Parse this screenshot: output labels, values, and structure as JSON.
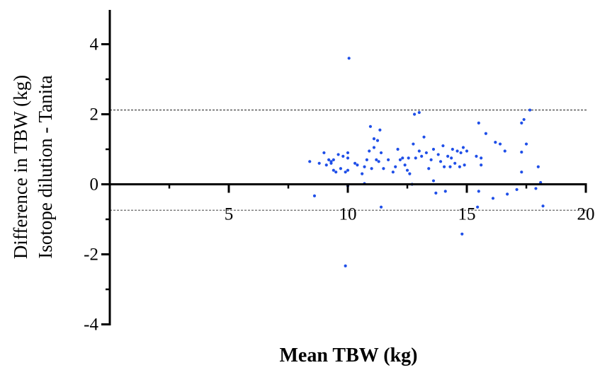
{
  "chart_data": {
    "type": "scatter",
    "xlabel": "Mean TBW (kg)",
    "ylabel_lines": [
      "Difference in TBW (kg)",
      "Isotope dilution - Tanita"
    ],
    "xlim": [
      0,
      20
    ],
    "ylim": [
      -4,
      4.5
    ],
    "x_ticks": [
      5,
      10,
      15,
      20
    ],
    "x_tick_labels": [
      "5",
      "10",
      "15",
      "20"
    ],
    "y_ticks": [
      -4,
      -2,
      0,
      2,
      4
    ],
    "y_tick_labels": [
      "-4",
      "-2",
      "0",
      "2",
      "4"
    ],
    "reference_lines": [
      2.12,
      -0.74
    ],
    "grid": false,
    "point_color": "#1f4fe8",
    "points": [
      [
        8.4,
        0.65
      ],
      [
        8.6,
        -0.33
      ],
      [
        8.8,
        0.6
      ],
      [
        9.0,
        0.9
      ],
      [
        9.1,
        0.55
      ],
      [
        9.2,
        0.7
      ],
      [
        9.3,
        0.65
      ],
      [
        9.3,
        0.6
      ],
      [
        9.4,
        0.7
      ],
      [
        9.4,
        0.4
      ],
      [
        9.5,
        0.35
      ],
      [
        9.6,
        0.85
      ],
      [
        9.7,
        0.45
      ],
      [
        9.8,
        0.8
      ],
      [
        9.9,
        0.35
      ],
      [
        9.9,
        -2.33
      ],
      [
        10.0,
        0.9
      ],
      [
        10.0,
        0.75
      ],
      [
        10.0,
        0.4
      ],
      [
        10.05,
        3.6
      ],
      [
        10.0,
        -0.05
      ],
      [
        10.3,
        0.6
      ],
      [
        10.4,
        0.55
      ],
      [
        10.6,
        0.3
      ],
      [
        10.7,
        0.5
      ],
      [
        10.7,
        0.02
      ],
      [
        10.8,
        0.7
      ],
      [
        10.9,
        0.95
      ],
      [
        10.95,
        1.65
      ],
      [
        11.0,
        0.45
      ],
      [
        11.1,
        1.3
      ],
      [
        11.1,
        1.05
      ],
      [
        11.2,
        0.7
      ],
      [
        11.25,
        1.25
      ],
      [
        11.3,
        0.65
      ],
      [
        11.35,
        1.55
      ],
      [
        11.4,
        0.9
      ],
      [
        11.4,
        -0.65
      ],
      [
        11.5,
        0.45
      ],
      [
        11.7,
        0.7
      ],
      [
        11.9,
        0.35
      ],
      [
        12.0,
        0.5
      ],
      [
        12.1,
        1.0
      ],
      [
        12.2,
        0.7
      ],
      [
        12.3,
        0.75
      ],
      [
        12.4,
        0.55
      ],
      [
        12.5,
        0.4
      ],
      [
        12.55,
        0.75
      ],
      [
        12.6,
        0.3
      ],
      [
        12.7,
        0.0
      ],
      [
        12.75,
        1.15
      ],
      [
        12.8,
        2.0
      ],
      [
        12.85,
        0.75
      ],
      [
        13.0,
        2.05
      ],
      [
        13.0,
        0.95
      ],
      [
        13.1,
        0.8
      ],
      [
        13.2,
        1.35
      ],
      [
        13.3,
        0.9
      ],
      [
        13.4,
        0.45
      ],
      [
        13.5,
        0.7
      ],
      [
        13.6,
        1.0
      ],
      [
        13.6,
        0.1
      ],
      [
        13.7,
        -0.25
      ],
      [
        13.8,
        0.85
      ],
      [
        13.9,
        0.65
      ],
      [
        14.0,
        1.1
      ],
      [
        14.05,
        0.5
      ],
      [
        14.1,
        -0.2
      ],
      [
        14.2,
        0.8
      ],
      [
        14.3,
        0.5
      ],
      [
        14.35,
        0.75
      ],
      [
        14.4,
        1.0
      ],
      [
        14.5,
        0.6
      ],
      [
        14.6,
        0.95
      ],
      [
        14.7,
        0.5
      ],
      [
        14.75,
        0.9
      ],
      [
        14.8,
        -1.42
      ],
      [
        14.85,
        1.05
      ],
      [
        14.9,
        0.55
      ],
      [
        15.0,
        0.95
      ],
      [
        15.4,
        0.8
      ],
      [
        15.45,
        -0.65
      ],
      [
        15.5,
        -0.2
      ],
      [
        15.5,
        1.75
      ],
      [
        15.6,
        0.75
      ],
      [
        15.6,
        0.55
      ],
      [
        15.8,
        1.45
      ],
      [
        16.1,
        -0.4
      ],
      [
        16.2,
        1.2
      ],
      [
        16.4,
        1.15
      ],
      [
        16.6,
        0.95
      ],
      [
        16.7,
        -0.28
      ],
      [
        17.1,
        -0.15
      ],
      [
        17.3,
        0.92
      ],
      [
        17.3,
        1.75
      ],
      [
        17.3,
        0.35
      ],
      [
        17.4,
        1.85
      ],
      [
        17.5,
        1.15
      ],
      [
        17.65,
        2.12
      ],
      [
        17.9,
        -0.12
      ],
      [
        18.0,
        0.5
      ],
      [
        18.1,
        0.05
      ],
      [
        18.2,
        -0.62
      ]
    ]
  }
}
